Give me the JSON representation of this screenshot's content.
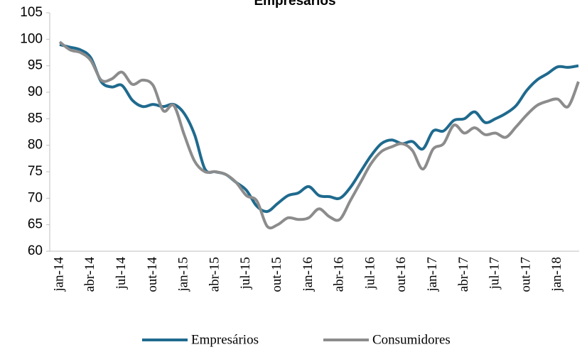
{
  "chart_data": {
    "type": "line",
    "title": "Empresários",
    "categories": [
      "jan-14",
      null,
      null,
      "abr-14",
      null,
      null,
      "jul-14",
      null,
      null,
      "out-14",
      null,
      null,
      "jan-15",
      null,
      null,
      "abr-15",
      null,
      null,
      "jul-15",
      null,
      null,
      "out-15",
      null,
      null,
      "jan-16",
      null,
      null,
      "abr-16",
      null,
      null,
      "jul-16",
      null,
      null,
      "out-16",
      null,
      null,
      "jan-17",
      null,
      null,
      "abr-17",
      null,
      null,
      "jul-17",
      null,
      null,
      "out-17",
      null,
      null,
      "jan-18",
      null,
      null
    ],
    "series": [
      {
        "name": "Empresários",
        "color": "#1f6a8e",
        "values": [
          99,
          98.5,
          98,
          96.5,
          92,
          91,
          91.3,
          88.5,
          87.3,
          87.7,
          87.3,
          87.7,
          86,
          82,
          75.5,
          75,
          74.5,
          73,
          71.5,
          68.5,
          67.5,
          69,
          70.5,
          71,
          72.2,
          70.5,
          70.3,
          70,
          72,
          75,
          78,
          80.3,
          81,
          80.3,
          80.7,
          79.3,
          82.7,
          82.7,
          84.7,
          85,
          86.3,
          84.3,
          85,
          86,
          87.5,
          90.3,
          92.3,
          93.5,
          94.8,
          94.7,
          95
        ]
      },
      {
        "name": "Consumidores",
        "color": "#8c8c8c",
        "values": [
          99.5,
          98,
          97.5,
          96,
          92.3,
          92.5,
          93.8,
          91.5,
          92.3,
          91.3,
          86.5,
          87.5,
          82,
          77,
          75,
          75,
          74.5,
          73,
          70.5,
          69.5,
          64.7,
          65,
          66.3,
          66,
          66.3,
          68,
          66.5,
          66,
          69.5,
          73,
          76.5,
          78.8,
          79.7,
          80.3,
          79,
          75.5,
          79.3,
          80.3,
          83.8,
          82.3,
          83.3,
          82,
          82.3,
          81.5,
          83.5,
          85.7,
          87.5,
          88.3,
          88.7,
          87.3,
          92
        ]
      }
    ],
    "ylim": [
      60,
      105
    ],
    "yticks": [
      60,
      65,
      70,
      75,
      80,
      85,
      90,
      95,
      100,
      105
    ],
    "legend": "bottom"
  }
}
